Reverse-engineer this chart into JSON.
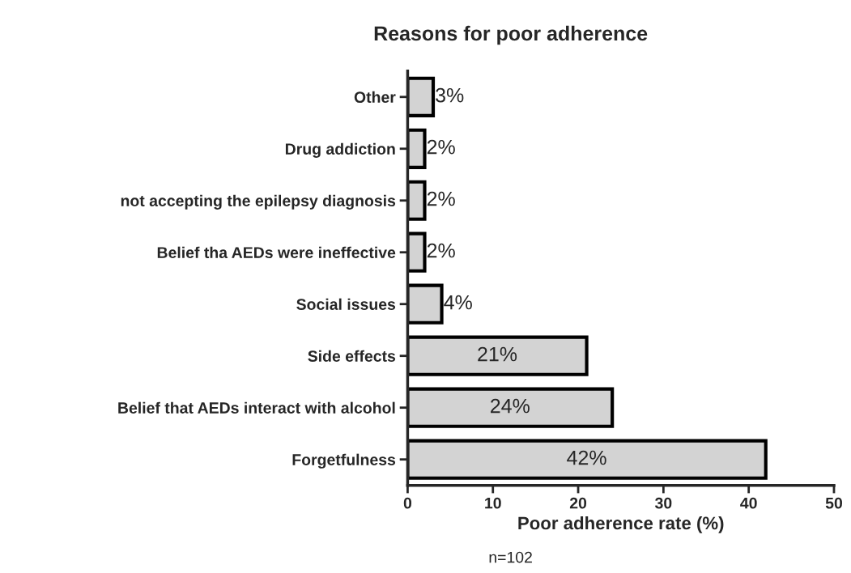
{
  "chart_data": {
    "type": "bar",
    "orientation": "horizontal",
    "title": "Reasons for poor adherence",
    "xlabel": "Poor adherence rate (%)",
    "categories": [
      "Other",
      "Drug addiction",
      "not accepting the epilepsy diagnosis",
      "Belief tha AEDs were ineffective",
      "Social issues",
      "Side effects",
      "Belief that AEDs interact with alcohol",
      "Forgetfulness"
    ],
    "values": [
      3,
      2,
      2,
      2,
      4,
      21,
      24,
      42
    ],
    "value_labels": [
      "3%",
      "2%",
      "2%",
      "2%",
      "4%",
      "21%",
      "24%",
      "42%"
    ],
    "color": "#d3d3d3",
    "xlim": [
      0,
      50
    ],
    "xticks": [
      0,
      10,
      20,
      30,
      40,
      50
    ],
    "annotations": [
      "n=102"
    ]
  }
}
